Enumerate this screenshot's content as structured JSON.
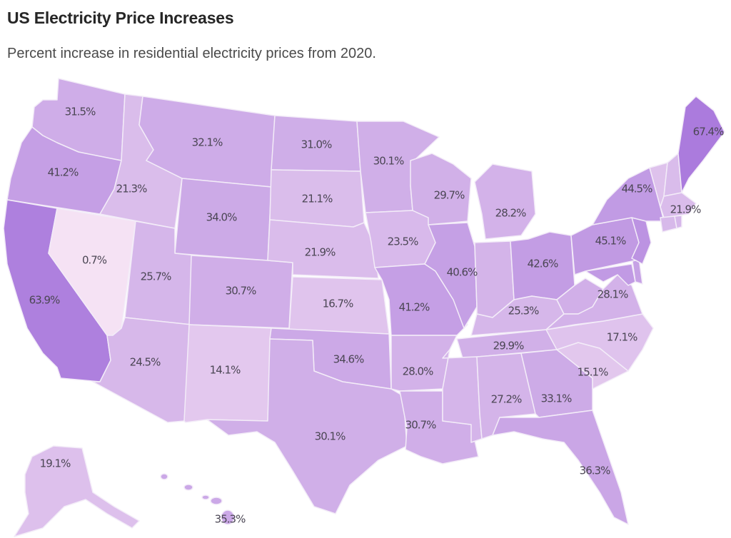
{
  "header": {
    "title": "US Electricity Price Increases",
    "subtitle": "Percent increase in residential electricity prices from 2020."
  },
  "chart_data": {
    "type": "choropleth",
    "title": "US Electricity Price Increases",
    "subtitle": "Percent increase in residential electricity prices from 2020.",
    "unit": "%",
    "color_scale": {
      "low": "#f7e4f4",
      "high": "#a878dc",
      "domain": [
        0,
        70
      ]
    },
    "states": [
      {
        "id": "WA",
        "name": "Washington",
        "value": 31.5,
        "label": "31.5%"
      },
      {
        "id": "OR",
        "name": "Oregon",
        "value": 41.2,
        "label": "41.2%"
      },
      {
        "id": "CA",
        "name": "California",
        "value": 63.9,
        "label": "63.9%"
      },
      {
        "id": "NV",
        "name": "Nevada",
        "value": 0.7,
        "label": "0.7%"
      },
      {
        "id": "ID",
        "name": "Idaho",
        "value": 21.3,
        "label": "21.3%"
      },
      {
        "id": "MT",
        "name": "Montana",
        "value": 32.1,
        "label": "32.1%"
      },
      {
        "id": "WY",
        "name": "Wyoming",
        "value": 34.0,
        "label": "34.0%"
      },
      {
        "id": "UT",
        "name": "Utah",
        "value": 25.7,
        "label": "25.7%"
      },
      {
        "id": "AZ",
        "name": "Arizona",
        "value": 24.5,
        "label": "24.5%"
      },
      {
        "id": "CO",
        "name": "Colorado",
        "value": 30.7,
        "label": "30.7%"
      },
      {
        "id": "NM",
        "name": "New Mexico",
        "value": 14.1,
        "label": "14.1%"
      },
      {
        "id": "ND",
        "name": "North Dakota",
        "value": 31.0,
        "label": "31.0%"
      },
      {
        "id": "SD",
        "name": "South Dakota",
        "value": 21.1,
        "label": "21.1%"
      },
      {
        "id": "NE",
        "name": "Nebraska",
        "value": 21.9,
        "label": "21.9%"
      },
      {
        "id": "KS",
        "name": "Kansas",
        "value": 16.7,
        "label": "16.7%"
      },
      {
        "id": "OK",
        "name": "Oklahoma",
        "value": 34.6,
        "label": "34.6%"
      },
      {
        "id": "TX",
        "name": "Texas",
        "value": 30.1,
        "label": "30.1%"
      },
      {
        "id": "MN",
        "name": "Minnesota",
        "value": 30.1,
        "label": "30.1%"
      },
      {
        "id": "IA",
        "name": "Iowa",
        "value": 23.5,
        "label": "23.5%"
      },
      {
        "id": "MO",
        "name": "Missouri",
        "value": 41.2,
        "label": "41.2%"
      },
      {
        "id": "AR",
        "name": "Arkansas",
        "value": 28.0,
        "label": "28.0%"
      },
      {
        "id": "LA",
        "name": "Louisiana",
        "value": 30.7,
        "label": "30.7%"
      },
      {
        "id": "WI",
        "name": "Wisconsin",
        "value": 29.7,
        "label": "29.7%"
      },
      {
        "id": "IL",
        "name": "Illinois",
        "value": 40.6,
        "label": "40.6%"
      },
      {
        "id": "MI",
        "name": "Michigan",
        "value": 28.2,
        "label": "28.2%"
      },
      {
        "id": "IN",
        "name": "Indiana",
        "value": null,
        "label": ""
      },
      {
        "id": "OH",
        "name": "Ohio",
        "value": 42.6,
        "label": "42.6%"
      },
      {
        "id": "KY",
        "name": "Kentucky",
        "value": 25.3,
        "label": "25.3%"
      },
      {
        "id": "TN",
        "name": "Tennessee",
        "value": 29.9,
        "label": "29.9%"
      },
      {
        "id": "MS",
        "name": "Mississippi",
        "value": null,
        "label": ""
      },
      {
        "id": "AL",
        "name": "Alabama",
        "value": 27.2,
        "label": "27.2%"
      },
      {
        "id": "GA",
        "name": "Georgia",
        "value": 33.1,
        "label": "33.1%"
      },
      {
        "id": "FL",
        "name": "Florida",
        "value": 36.3,
        "label": "36.3%"
      },
      {
        "id": "SC",
        "name": "South Carolina",
        "value": 15.1,
        "label": "15.1%"
      },
      {
        "id": "NC",
        "name": "North Carolina",
        "value": 17.1,
        "label": "17.1%"
      },
      {
        "id": "VA",
        "name": "Virginia",
        "value": 28.1,
        "label": "28.1%"
      },
      {
        "id": "WV",
        "name": "West Virginia",
        "value": null,
        "label": ""
      },
      {
        "id": "PA",
        "name": "Pennsylvania",
        "value": 45.1,
        "label": "45.1%"
      },
      {
        "id": "NY",
        "name": "New York",
        "value": 44.5,
        "label": "44.5%"
      },
      {
        "id": "NJ",
        "name": "New Jersey",
        "value": null,
        "label": ""
      },
      {
        "id": "MD",
        "name": "Maryland",
        "value": null,
        "label": ""
      },
      {
        "id": "VT",
        "name": "Vermont",
        "value": null,
        "label": ""
      },
      {
        "id": "NH",
        "name": "New Hampshire",
        "value": null,
        "label": ""
      },
      {
        "id": "MA",
        "name": "Massachusetts",
        "value": 21.9,
        "label": "21.9%"
      },
      {
        "id": "ME",
        "name": "Maine",
        "value": 67.4,
        "label": "67.4%"
      },
      {
        "id": "AK",
        "name": "Alaska",
        "value": 19.1,
        "label": "19.1%"
      },
      {
        "id": "HI",
        "name": "Hawaii",
        "value": 35.3,
        "label": "35.3%"
      }
    ],
    "fallback_fills": {
      "IN": 27,
      "MS": 26,
      "WV": 30,
      "NJ": 50,
      "MD": 45,
      "VT": 18,
      "NH": 22,
      "DE": 40,
      "CT": 24,
      "RI": 25
    }
  }
}
